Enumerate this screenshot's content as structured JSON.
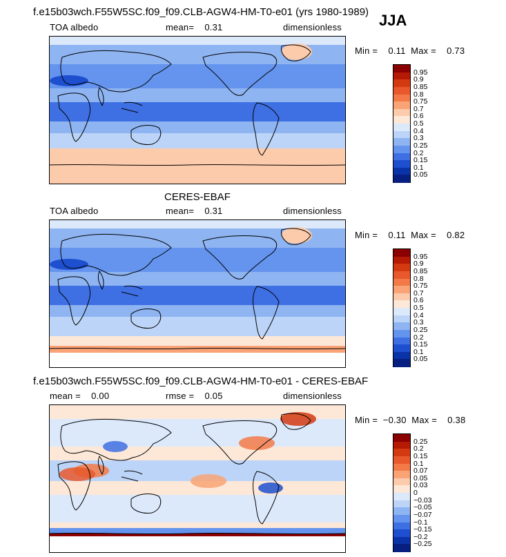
{
  "season": "JJA",
  "panels": [
    {
      "title": "f.e15b03wch.F55W5SC.f09_f09.CLB-AGW4-HM-T0-e01 (yrs 1980-1989)",
      "left_label": "TOA albedo",
      "mean_text": "mean=    0.31",
      "units": "dimensionless",
      "minmax_text": "Min =    0.11  Max =    0.73",
      "min": 0.11,
      "max": 0.73,
      "mean": 0.31
    },
    {
      "title": "CERES-EBAF",
      "left_label": "TOA albedo",
      "mean_text": "mean=    0.31",
      "units": "dimensionless",
      "minmax_text": "Min =    0.11  Max =    0.82",
      "min": 0.11,
      "max": 0.82,
      "mean": 0.31
    },
    {
      "title": "f.e15b03wch.F55W5SC.f09_f09.CLB-AGW4-HM-T0-e01 - CERES-EBAF",
      "left_label": "mean =    0.00",
      "mean_text": "rmse =    0.05",
      "units": "dimensionless",
      "minmax_text": "Min =  −0.30  Max =    0.38",
      "min": -0.3,
      "max": 0.38,
      "mean": 0.0,
      "rmse": 0.05
    }
  ],
  "colorbars": {
    "albedo": {
      "labels": [
        "0.95",
        "0.9",
        "0.85",
        "0.8",
        "0.75",
        "0.7",
        "0.6",
        "0.5",
        "0.4",
        "0.3",
        "0.25",
        "0.2",
        "0.15",
        "0.1",
        "0.05"
      ],
      "colors": [
        "#8b0000",
        "#b41a04",
        "#d33a12",
        "#e8582c",
        "#f37a48",
        "#f9a376",
        "#fccbab",
        "#fde8d8",
        "#dce9fb",
        "#bcd4f7",
        "#8fb4f2",
        "#6494ee",
        "#3e70e3",
        "#1e4fcf",
        "#0b33a8",
        "#071f80"
      ]
    },
    "diff": {
      "labels": [
        "0.25",
        "0.2",
        "0.15",
        "0.1",
        "0.07",
        "0.05",
        "0.03",
        "0",
        "−0.03",
        "−0.05",
        "−0.07",
        "−0.1",
        "−0.15",
        "−0.2",
        "−0.25"
      ],
      "colors": [
        "#8b0000",
        "#b41a04",
        "#d33a12",
        "#e8582c",
        "#f37a48",
        "#f9a376",
        "#fccbab",
        "#fde8d8",
        "#dce9fb",
        "#bcd4f7",
        "#8fb4f2",
        "#6494ee",
        "#3e70e3",
        "#1e4fcf",
        "#0b33a8",
        "#071f80"
      ]
    }
  },
  "chart_data": [
    {
      "type": "heatmap",
      "title": "f.e15b03wch.F55W5SC.f09_f09.CLB-AGW4-HM-T0-e01 (yrs 1980-1989)",
      "variable": "TOA albedo",
      "units": "dimensionless",
      "mean": 0.31,
      "min": 0.11,
      "max": 0.73,
      "contour_levels": [
        0.05,
        0.1,
        0.15,
        0.2,
        0.25,
        0.3,
        0.4,
        0.5,
        0.6,
        0.7,
        0.75,
        0.8,
        0.85,
        0.9,
        0.95
      ]
    },
    {
      "type": "heatmap",
      "title": "CERES-EBAF",
      "variable": "TOA albedo",
      "units": "dimensionless",
      "mean": 0.31,
      "min": 0.11,
      "max": 0.82,
      "contour_levels": [
        0.05,
        0.1,
        0.15,
        0.2,
        0.25,
        0.3,
        0.4,
        0.5,
        0.6,
        0.7,
        0.75,
        0.8,
        0.85,
        0.9,
        0.95
      ]
    },
    {
      "type": "heatmap",
      "title": "f.e15b03wch.F55W5SC.f09_f09.CLB-AGW4-HM-T0-e01 - CERES-EBAF",
      "units": "dimensionless",
      "mean": 0.0,
      "rmse": 0.05,
      "min": -0.3,
      "max": 0.38,
      "contour_levels": [
        -0.25,
        -0.2,
        -0.15,
        -0.1,
        -0.07,
        -0.05,
        -0.03,
        0,
        0.03,
        0.05,
        0.07,
        0.1,
        0.15,
        0.2,
        0.25
      ]
    }
  ]
}
